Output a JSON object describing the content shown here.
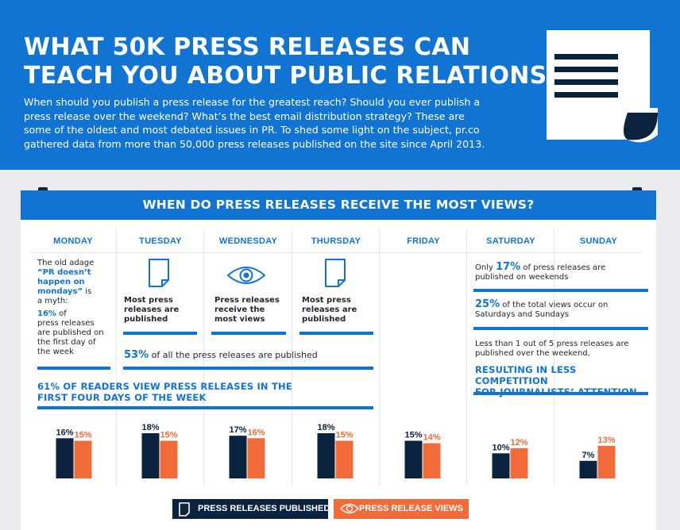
{
  "header": {
    "title_line1": "WHAT 50K PRESS RELEASES CAN",
    "title_line2": "TEACH YOU ABOUT PUBLIC RELATIONS",
    "intro_lines": [
      "When should you publish a press release for the greatest reach? Should you ever publish a",
      "press release over the weekend? What’s the best email distribution strategy? These are",
      "some of the oldest and most debated issues in PR. To shed some light on the subject, pr.co",
      "gathered data from more than 50,000 press releases published on the site since April 2013."
    ]
  },
  "section": {
    "title": "WHEN DO PRESS RELEASES RECEIVE THE MOST VIEWS?",
    "days": [
      "MONDAY",
      "TUESDAY",
      "WEDNESDAY",
      "THURSDAY",
      "FRIDAY",
      "SATURDAY",
      "SUNDAY"
    ],
    "monday": {
      "l1": "The old adage",
      "q1": "“PR doesn’t",
      "q2": "happen on",
      "q3": "mondays”",
      "q3_rest": " is",
      "l5": "a myth:",
      "pct": "16%",
      "pct_rest": " of",
      "l7": "press releases",
      "l8": "are published on",
      "l9": "the first day of",
      "l10": "the week"
    },
    "tuesday": {
      "l1": "Most press",
      "l2": "releases are",
      "l3": "published"
    },
    "wednesday": {
      "l1": "Press releases",
      "l2": "receive the",
      "l3": "most views"
    },
    "thursday": {
      "l1": "Most press",
      "l2": "releases are",
      "l3": "published"
    },
    "midweek": {
      "pct": "53%",
      "rest": " of all the press releases are published"
    },
    "readers": {
      "l1": "61% OF READERS VIEW PRESS RELEASES IN THE",
      "l2": "FIRST FOUR DAYS OF THE WEEK"
    },
    "weekend": {
      "s1_pre": "Only ",
      "s1_pct": "17%",
      "s1_post": " of press releases are",
      "s1_l2": "published on weekends",
      "s2_pct": "25%",
      "s2_post": " of the total views occur on",
      "s2_l2": "Saturdays and Sundays",
      "s3_l1": "Less than 1 out of 5 press releases are",
      "s3_l2": "published over the weekend,",
      "s3_h1": "RESULTING IN LESS COMPETITION",
      "s3_h2": "FOR JOURNALISTS’ ATTENTION"
    }
  },
  "chart_data": {
    "type": "bar",
    "categories": [
      "MONDAY",
      "TUESDAY",
      "WEDNESDAY",
      "THURSDAY",
      "FRIDAY",
      "SATURDAY",
      "SUNDAY"
    ],
    "series": [
      {
        "name": "PRESS RELEASES PUBLISHED",
        "values": [
          16,
          18,
          17,
          18,
          15,
          10,
          7
        ],
        "color": "#0c2340"
      },
      {
        "name": "PRESS RELEASE VIEWS",
        "values": [
          15,
          15,
          16,
          15,
          14,
          12,
          13
        ],
        "color": "#f26b3a"
      }
    ],
    "unit": "%",
    "ylim": [
      0,
      20
    ]
  },
  "legend": {
    "published": "PRESS RELEASES PUBLISHED",
    "views": "PRESS RELEASE VIEWS",
    "published_icon": "document-icon",
    "views_icon": "eye-icon"
  },
  "colors": {
    "brand_blue": "#1174d3",
    "navy": "#0c2340",
    "orange": "#f26b3a"
  }
}
